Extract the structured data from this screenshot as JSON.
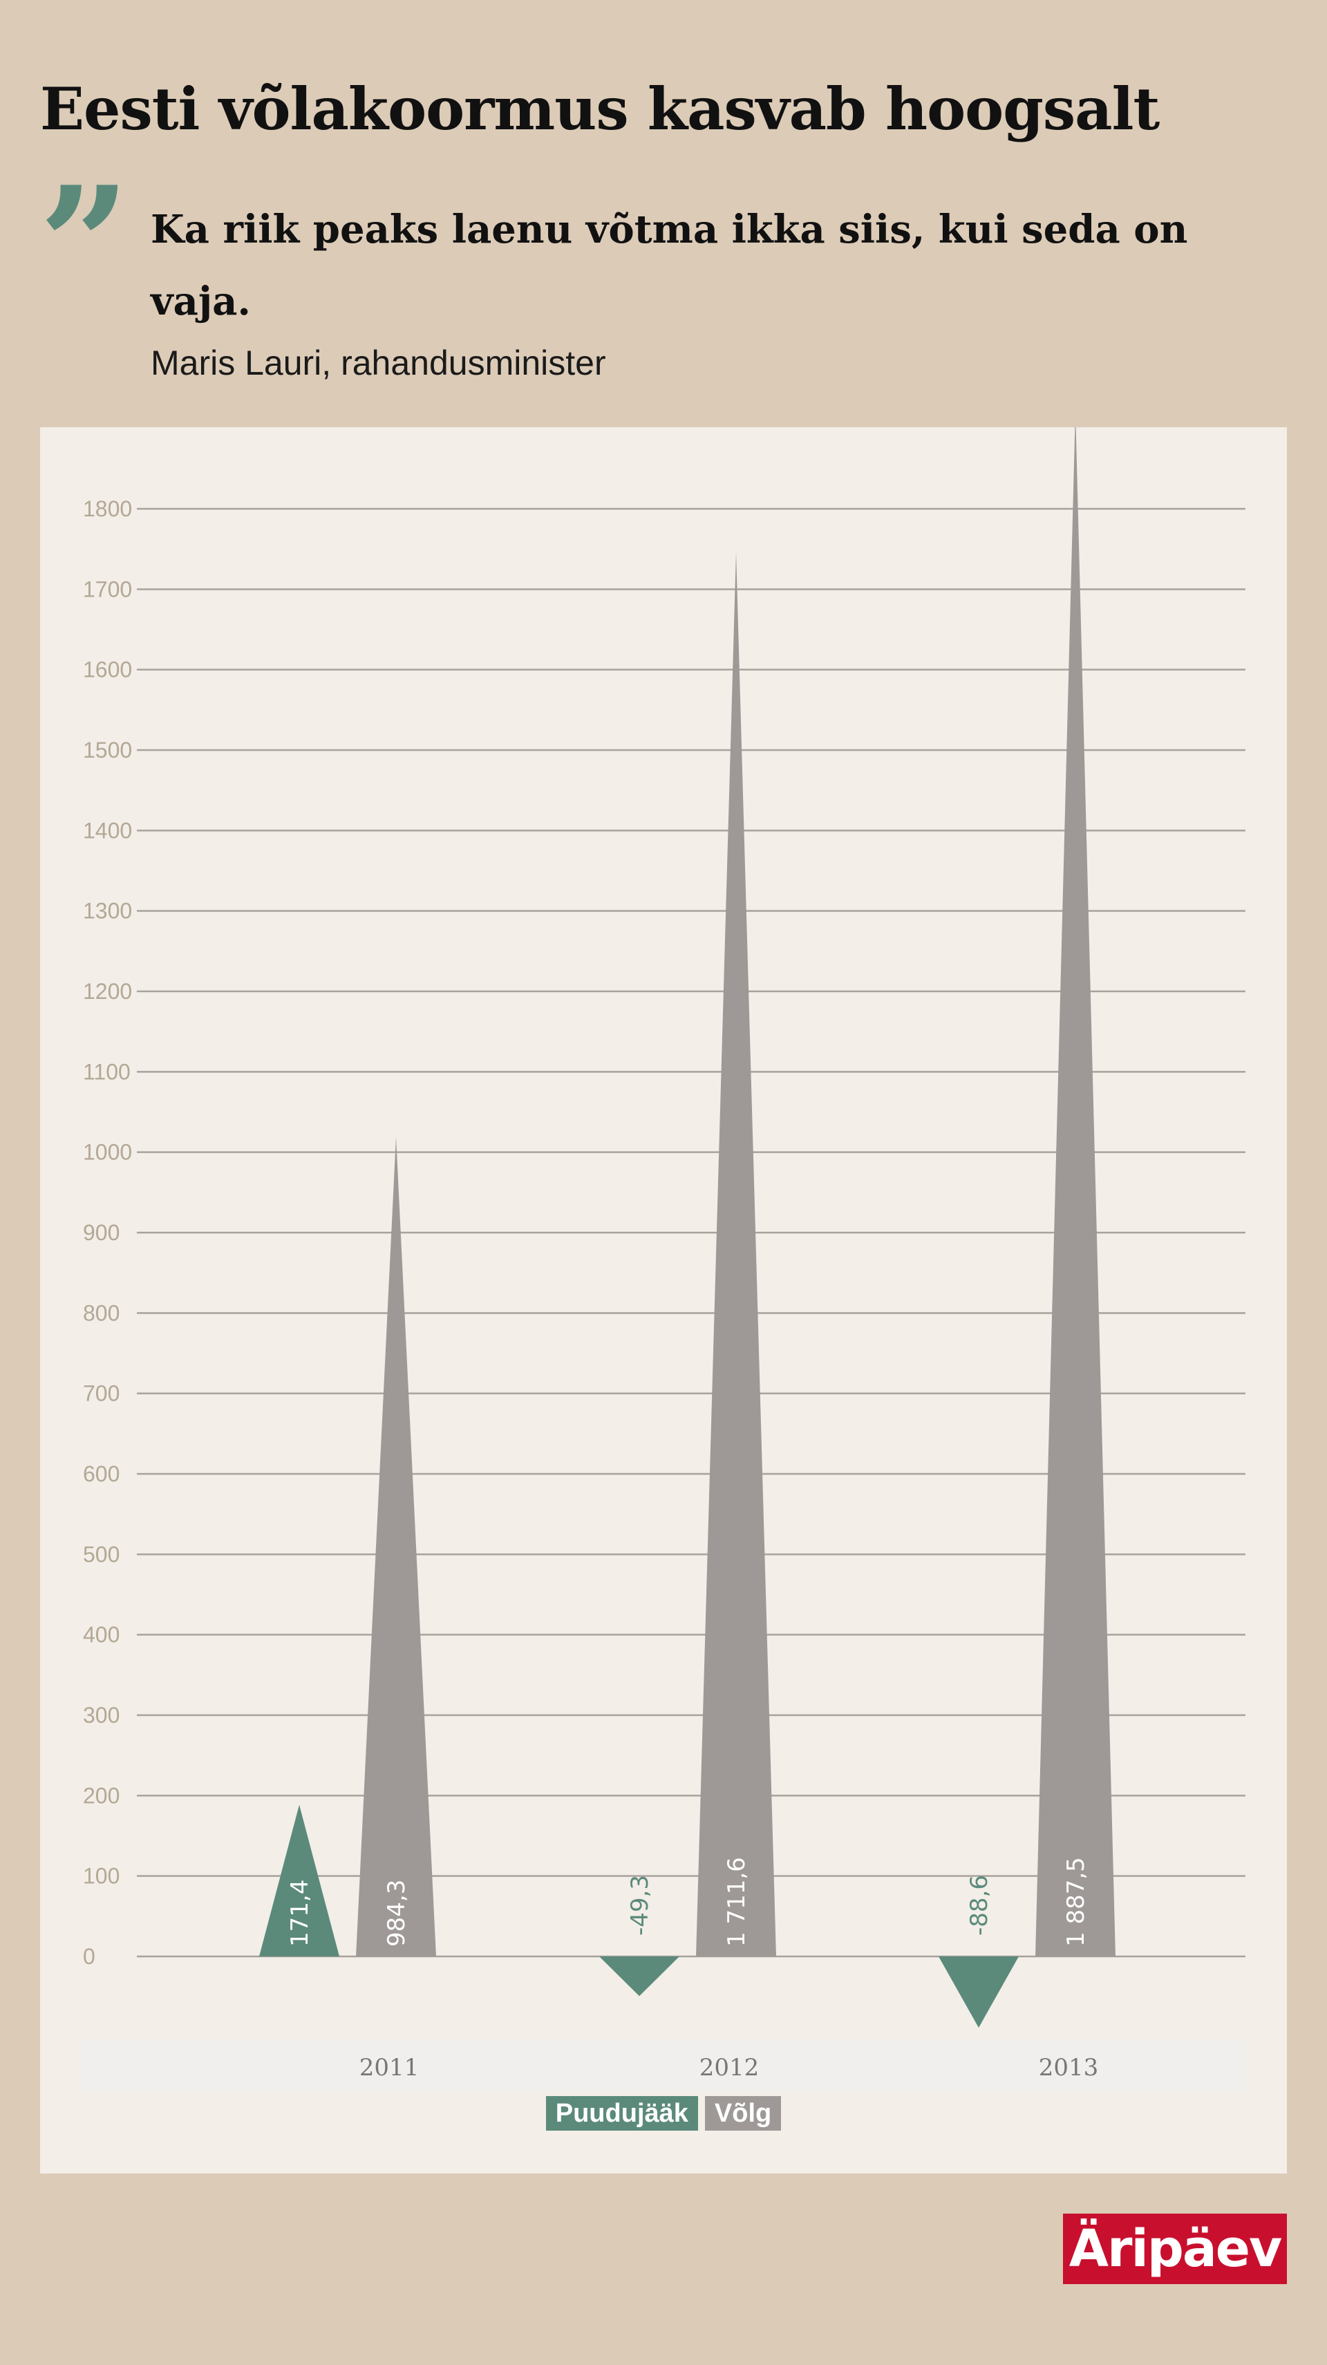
{
  "header": {
    "title": "Eesti võlakoormus kasvab hoogsalt",
    "quote_mark": "”",
    "quote": "Ka riik peaks laenu võtma ikka siis, kui seda on vaja.",
    "author": "Maris Lauri, rahandusminister"
  },
  "chart_data": {
    "type": "bar",
    "categories": [
      "2011",
      "2012",
      "2013"
    ],
    "series": [
      {
        "name": "Puudujääk",
        "values": [
          171.4,
          -49.3,
          -88.6
        ],
        "labels": [
          "171,4",
          "-49,3",
          "-88,6"
        ],
        "color": "#5b8a7b"
      },
      {
        "name": "Võlg",
        "values": [
          984.3,
          1711.6,
          1887.5
        ],
        "labels": [
          "984,3",
          "1 711,6",
          "1 887,5"
        ],
        "color": "#9e9996"
      }
    ],
    "ylim": [
      0,
      1800
    ],
    "yticks": [
      0,
      100,
      200,
      300,
      400,
      500,
      600,
      700,
      800,
      900,
      1000,
      1100,
      1200,
      1300,
      1400,
      1500,
      1600,
      1700,
      1800
    ],
    "grid": true,
    "legend_position": "bottom-center",
    "colors": {
      "gridline": "#a9a29c",
      "tick_label": "#b3a895",
      "category_label": "#777777"
    }
  },
  "logo": {
    "text": "Äripäev",
    "color": "#c8102e"
  }
}
